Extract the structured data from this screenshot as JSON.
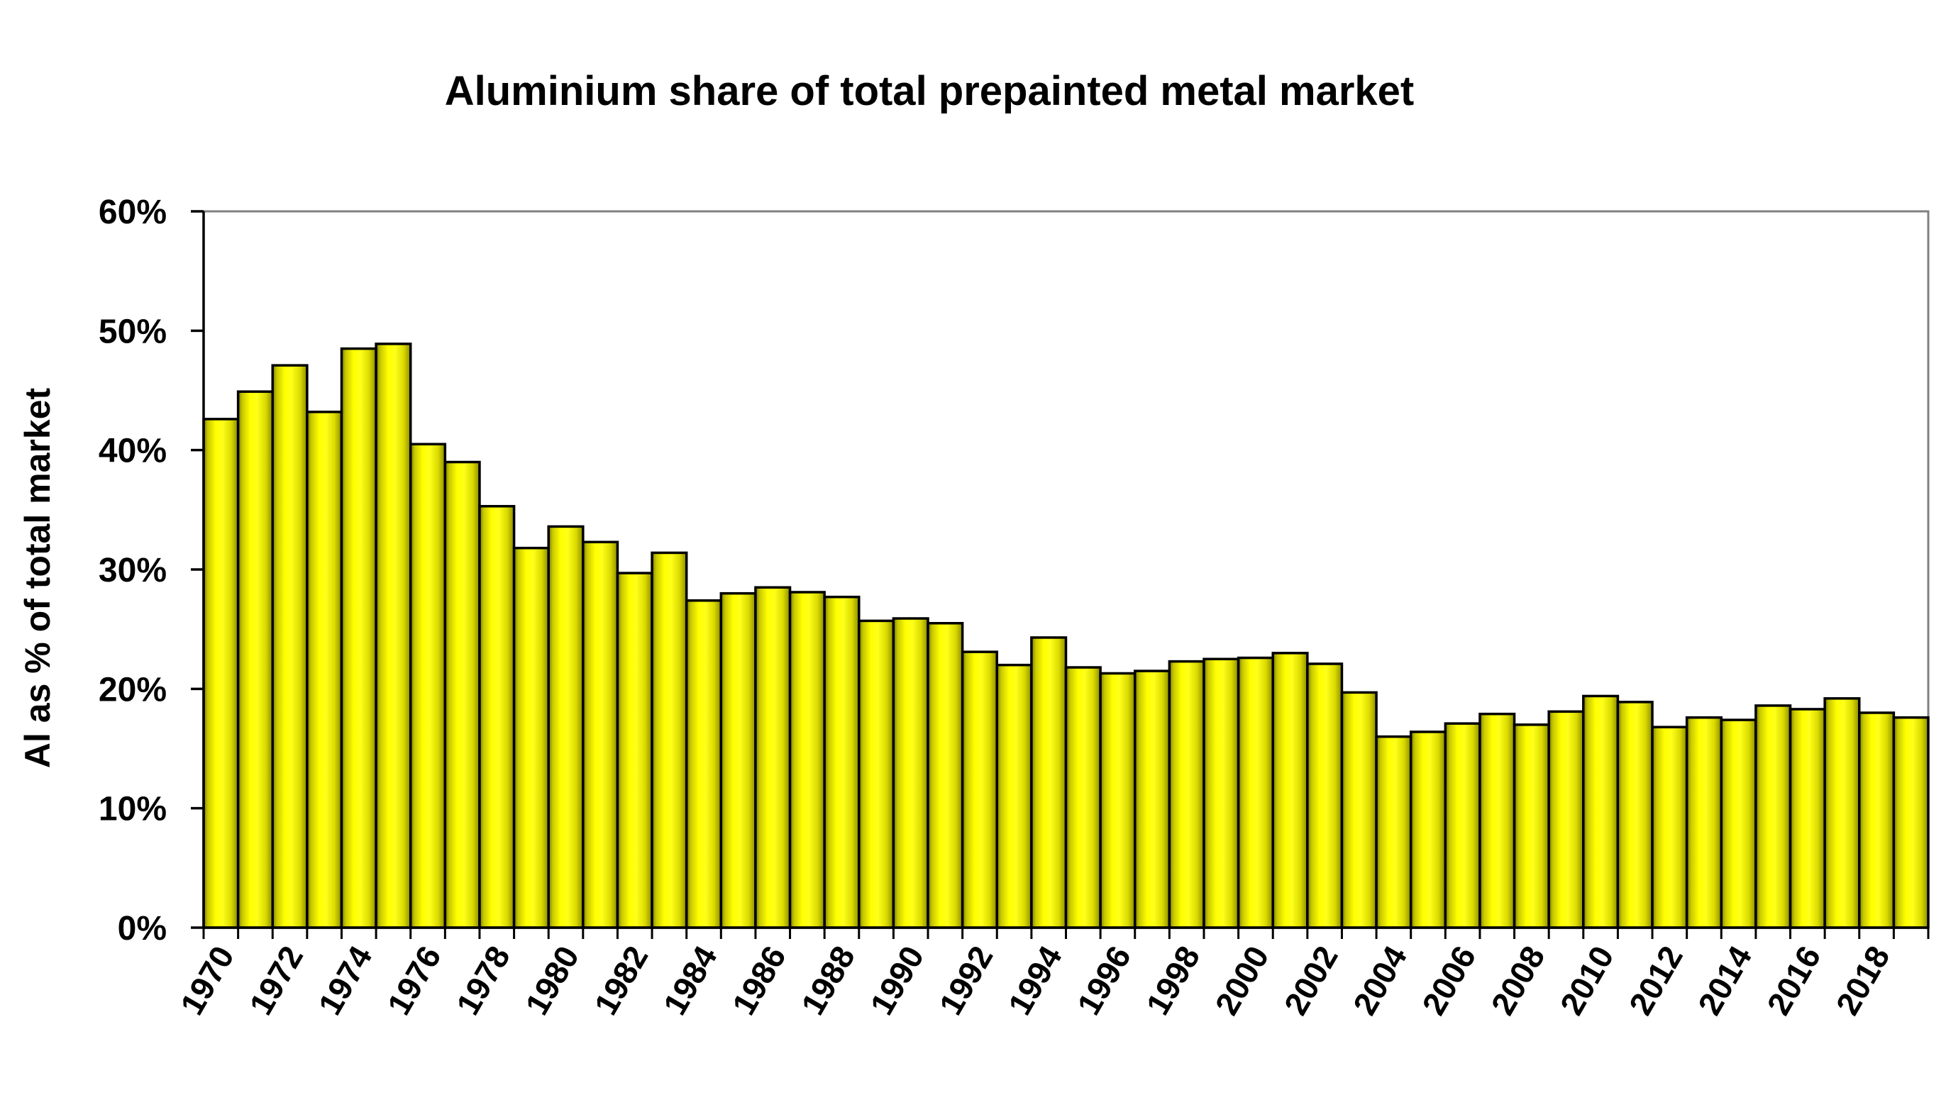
{
  "chart_data": {
    "type": "bar",
    "title": "Aluminium share of total prepainted metal market",
    "xlabel": "",
    "ylabel": "Al as % of total market",
    "ylim": [
      0,
      0.6
    ],
    "y_ticks": [
      "0%",
      "10%",
      "20%",
      "30%",
      "40%",
      "50%",
      "60%"
    ],
    "categories": [
      "1970",
      "1971",
      "1972",
      "1973",
      "1974",
      "1975",
      "1976",
      "1977",
      "1978",
      "1979",
      "1980",
      "1981",
      "1982",
      "1983",
      "1984",
      "1985",
      "1986",
      "1987",
      "1988",
      "1989",
      "1990",
      "1991",
      "1992",
      "1993",
      "1994",
      "1995",
      "1996",
      "1997",
      "1998",
      "1999",
      "2000",
      "2001",
      "2002",
      "2003",
      "2004",
      "2005",
      "2006",
      "2007",
      "2008",
      "2009",
      "2010",
      "2011",
      "2012",
      "2013",
      "2014",
      "2015",
      "2016",
      "2017",
      "2018",
      "2019"
    ],
    "x_tick_labels": [
      "1970",
      "1972",
      "1974",
      "1976",
      "1978",
      "1980",
      "1982",
      "1984",
      "1986",
      "1988",
      "1990",
      "1992",
      "1994",
      "1996",
      "1998",
      "2000",
      "2002",
      "2004",
      "2006",
      "2008",
      "2010",
      "2012",
      "2014",
      "2016",
      "2018"
    ],
    "values": [
      0.426,
      0.449,
      0.471,
      0.432,
      0.485,
      0.489,
      0.405,
      0.39,
      0.353,
      0.318,
      0.336,
      0.323,
      0.297,
      0.314,
      0.274,
      0.28,
      0.285,
      0.281,
      0.277,
      0.257,
      0.259,
      0.255,
      0.231,
      0.22,
      0.243,
      0.218,
      0.213,
      0.215,
      0.223,
      0.225,
      0.226,
      0.23,
      0.221,
      0.197,
      0.16,
      0.164,
      0.171,
      0.179,
      0.17,
      0.181,
      0.194,
      0.189,
      0.168,
      0.176,
      0.174,
      0.186,
      0.183,
      0.192,
      0.18,
      0.176
    ],
    "grid": false,
    "legend": "none",
    "bar_color": "#ffff00",
    "bar_edge_color": "#000000",
    "frame_color": "#808080"
  }
}
